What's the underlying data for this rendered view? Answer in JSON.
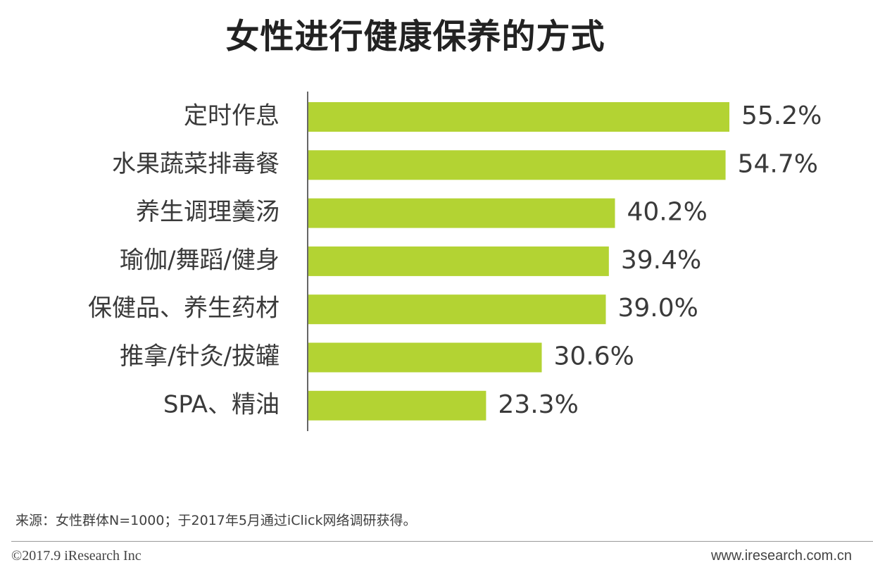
{
  "title": "女性进行健康保养的方式",
  "chart_data": {
    "type": "bar",
    "orientation": "horizontal",
    "categories": [
      "定时作息",
      "水果蔬菜排毒餐",
      "养生调理羹汤",
      "瑜伽/舞蹈/健身",
      "保健品、养生药材",
      "推拿/针灸/拔罐",
      "SPA、精油"
    ],
    "values": [
      55.2,
      54.7,
      40.2,
      39.4,
      39.0,
      30.6,
      23.3
    ],
    "value_labels": [
      "55.2%",
      "54.7%",
      "40.2%",
      "39.4%",
      "39.0%",
      "30.6%",
      "23.3%"
    ],
    "unit": "%",
    "xlim": [
      0,
      60
    ],
    "bar_color": "#b3d333",
    "grid": false,
    "legend": "none"
  },
  "footer": {
    "source": "来源：女性群体N=1000；于2017年5月通过iClick网络调研获得。",
    "copyright": "©2017.9 iResearch Inc",
    "website": "www.iresearch.com.cn"
  }
}
